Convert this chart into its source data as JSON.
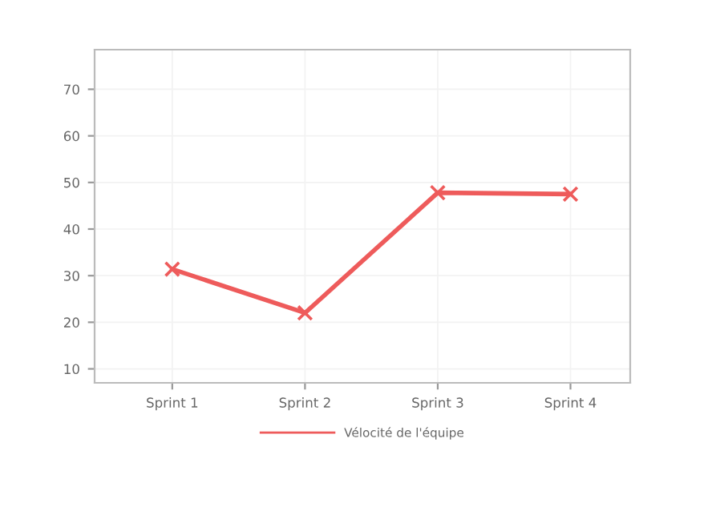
{
  "chart_data": {
    "type": "line",
    "categories": [
      "Sprint 1",
      "Sprint 2",
      "Sprint 3",
      "Sprint 4"
    ],
    "series": [
      {
        "name": "Vélocité de l'équipe",
        "color": "#ee5b5b",
        "values": [
          31.4,
          22,
          47.8,
          47.5
        ]
      }
    ],
    "ylim": [
      7,
      78.5
    ],
    "yticks": [
      10,
      20,
      30,
      40,
      50,
      60,
      70
    ],
    "grid": true,
    "legend": "bottom",
    "marker": "cross",
    "line_style": "solid"
  }
}
